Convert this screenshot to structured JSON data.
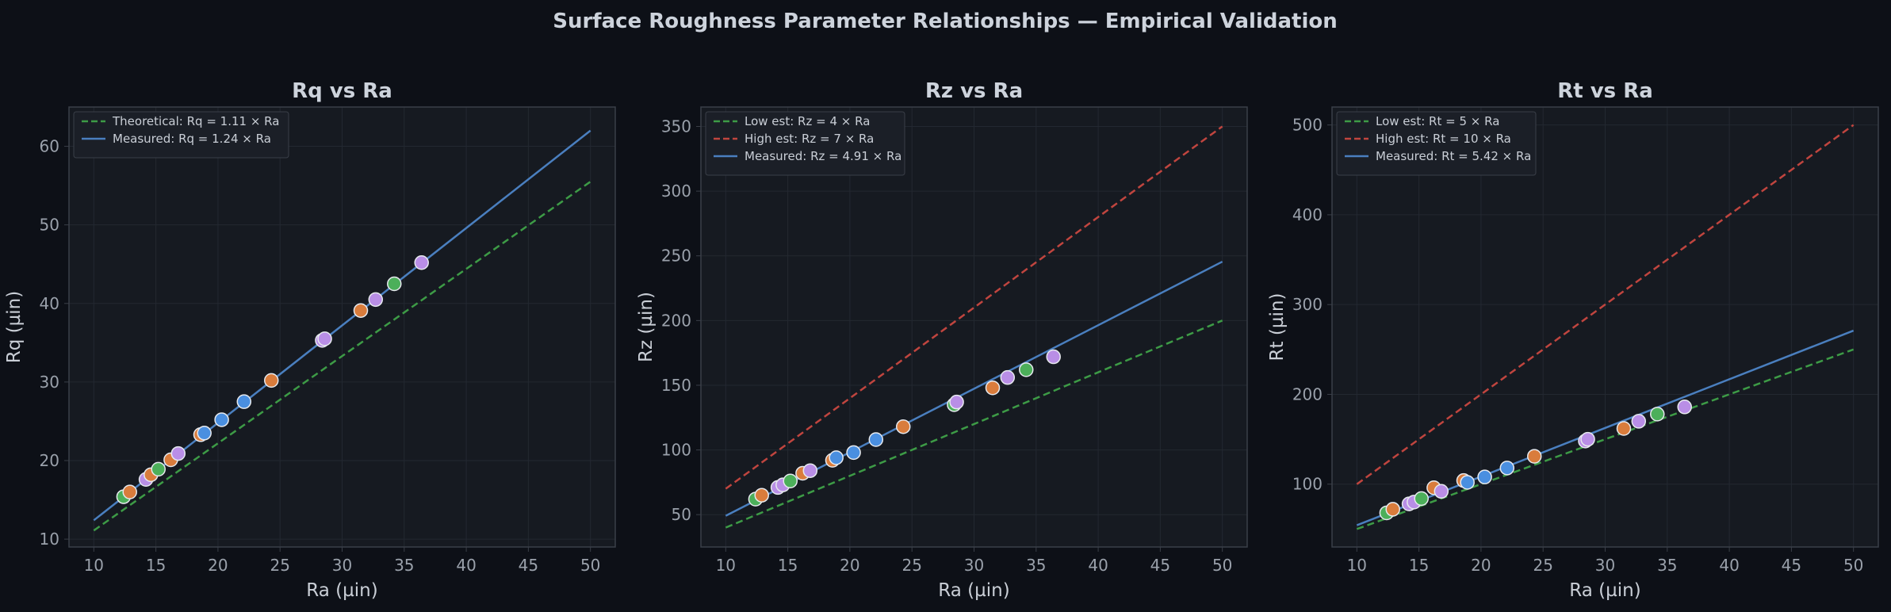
{
  "title": "Surface Roughness Parameter Relationships — Empirical Validation",
  "colors": {
    "background": "#0d1017",
    "panel": "#161a21",
    "grid": "#232831",
    "spine": "#3a3f48",
    "green": "#3d9b46",
    "red": "#c0453f",
    "blue": "#4a7fbf",
    "point_blue": "#4a8fe0",
    "point_orange": "#d97c3c",
    "point_green": "#4caf5a",
    "point_purple": "#b98ee6"
  },
  "chart_data": [
    {
      "type": "scatter",
      "title": "Rq vs Ra",
      "xlabel": "Ra (µin)",
      "ylabel": "Rq (µin)",
      "xlim": [
        8,
        52
      ],
      "ylim": [
        9,
        65
      ],
      "xticks": [
        10,
        15,
        20,
        25,
        30,
        35,
        40,
        45,
        50
      ],
      "yticks": [
        10,
        20,
        30,
        40,
        50,
        60
      ],
      "grid": true,
      "legend_position": "top-left",
      "lines": [
        {
          "name": "Theoretical: Rq = 1.11 × Ra",
          "slope": 1.11,
          "style": "dashed",
          "color": "green"
        },
        {
          "name": "Measured: Rq = 1.24 × Ra",
          "slope": 1.24,
          "style": "solid",
          "color": "blue"
        }
      ],
      "points": [
        {
          "x": 12.4,
          "y": 15.4,
          "color": "point_green"
        },
        {
          "x": 12.9,
          "y": 16.0,
          "color": "point_orange"
        },
        {
          "x": 14.2,
          "y": 17.6,
          "color": "point_purple"
        },
        {
          "x": 14.6,
          "y": 18.2,
          "color": "point_orange"
        },
        {
          "x": 15.2,
          "y": 18.9,
          "color": "point_green"
        },
        {
          "x": 16.2,
          "y": 20.1,
          "color": "point_orange"
        },
        {
          "x": 16.8,
          "y": 20.9,
          "color": "point_purple"
        },
        {
          "x": 18.6,
          "y": 23.3,
          "color": "point_orange"
        },
        {
          "x": 18.9,
          "y": 23.5,
          "color": "point_blue"
        },
        {
          "x": 20.3,
          "y": 25.2,
          "color": "point_blue"
        },
        {
          "x": 22.1,
          "y": 27.5,
          "color": "point_blue"
        },
        {
          "x": 24.3,
          "y": 30.2,
          "color": "point_orange"
        },
        {
          "x": 28.4,
          "y": 35.3,
          "color": "point_purple"
        },
        {
          "x": 28.6,
          "y": 35.5,
          "color": "point_purple"
        },
        {
          "x": 31.5,
          "y": 39.1,
          "color": "point_orange"
        },
        {
          "x": 32.7,
          "y": 40.5,
          "color": "point_purple"
        },
        {
          "x": 34.2,
          "y": 42.5,
          "color": "point_green"
        },
        {
          "x": 36.4,
          "y": 45.2,
          "color": "point_purple"
        }
      ]
    },
    {
      "type": "scatter",
      "title": "Rz vs Ra",
      "xlabel": "Ra (µin)",
      "ylabel": "Rz (µin)",
      "xlim": [
        8,
        52
      ],
      "ylim": [
        25,
        365
      ],
      "xticks": [
        10,
        15,
        20,
        25,
        30,
        35,
        40,
        45,
        50
      ],
      "yticks": [
        50,
        100,
        150,
        200,
        250,
        300,
        350
      ],
      "grid": true,
      "legend_position": "top-left",
      "lines": [
        {
          "name": "Low est: Rz = 4 × Ra",
          "slope": 4,
          "style": "dashed",
          "color": "green"
        },
        {
          "name": "High est: Rz = 7 × Ra",
          "slope": 7,
          "style": "dashed",
          "color": "red"
        },
        {
          "name": "Measured: Rz = 4.91 × Ra",
          "slope": 4.91,
          "style": "solid",
          "color": "blue"
        }
      ],
      "points": [
        {
          "x": 12.4,
          "y": 62,
          "color": "point_green"
        },
        {
          "x": 12.9,
          "y": 65,
          "color": "point_orange"
        },
        {
          "x": 14.2,
          "y": 71,
          "color": "point_purple"
        },
        {
          "x": 14.6,
          "y": 73,
          "color": "point_purple"
        },
        {
          "x": 15.2,
          "y": 76,
          "color": "point_green"
        },
        {
          "x": 16.2,
          "y": 82,
          "color": "point_orange"
        },
        {
          "x": 16.8,
          "y": 84,
          "color": "point_purple"
        },
        {
          "x": 18.6,
          "y": 92,
          "color": "point_orange"
        },
        {
          "x": 18.9,
          "y": 94,
          "color": "point_blue"
        },
        {
          "x": 20.3,
          "y": 98,
          "color": "point_blue"
        },
        {
          "x": 22.1,
          "y": 108,
          "color": "point_blue"
        },
        {
          "x": 24.3,
          "y": 118,
          "color": "point_orange"
        },
        {
          "x": 28.4,
          "y": 135,
          "color": "point_green"
        },
        {
          "x": 28.6,
          "y": 137,
          "color": "point_purple"
        },
        {
          "x": 31.5,
          "y": 148,
          "color": "point_orange"
        },
        {
          "x": 32.7,
          "y": 156,
          "color": "point_purple"
        },
        {
          "x": 34.2,
          "y": 162,
          "color": "point_green"
        },
        {
          "x": 36.4,
          "y": 172,
          "color": "point_purple"
        }
      ]
    },
    {
      "type": "scatter",
      "title": "Rt vs Ra",
      "xlabel": "Ra (µin)",
      "ylabel": "Rt (µin)",
      "xlim": [
        8,
        52
      ],
      "ylim": [
        30,
        520
      ],
      "xticks": [
        10,
        15,
        20,
        25,
        30,
        35,
        40,
        45,
        50
      ],
      "yticks": [
        100,
        200,
        300,
        400,
        500
      ],
      "grid": true,
      "legend_position": "top-left",
      "lines": [
        {
          "name": "Low est: Rt = 5 × Ra",
          "slope": 5,
          "style": "dashed",
          "color": "green"
        },
        {
          "name": "High est: Rt = 10 × Ra",
          "slope": 10,
          "style": "dashed",
          "color": "red"
        },
        {
          "name": "Measured: Rt = 5.42 × Ra",
          "slope": 5.42,
          "style": "solid",
          "color": "blue"
        }
      ],
      "points": [
        {
          "x": 12.4,
          "y": 68,
          "color": "point_green"
        },
        {
          "x": 12.9,
          "y": 72,
          "color": "point_orange"
        },
        {
          "x": 14.2,
          "y": 78,
          "color": "point_purple"
        },
        {
          "x": 14.6,
          "y": 80,
          "color": "point_purple"
        },
        {
          "x": 15.2,
          "y": 84,
          "color": "point_green"
        },
        {
          "x": 16.2,
          "y": 96,
          "color": "point_orange"
        },
        {
          "x": 16.8,
          "y": 92,
          "color": "point_purple"
        },
        {
          "x": 18.6,
          "y": 104,
          "color": "point_orange"
        },
        {
          "x": 18.9,
          "y": 102,
          "color": "point_blue"
        },
        {
          "x": 20.3,
          "y": 108,
          "color": "point_blue"
        },
        {
          "x": 22.1,
          "y": 118,
          "color": "point_blue"
        },
        {
          "x": 24.3,
          "y": 131,
          "color": "point_orange"
        },
        {
          "x": 28.4,
          "y": 148,
          "color": "point_purple"
        },
        {
          "x": 28.6,
          "y": 150,
          "color": "point_purple"
        },
        {
          "x": 31.5,
          "y": 162,
          "color": "point_orange"
        },
        {
          "x": 32.7,
          "y": 170,
          "color": "point_purple"
        },
        {
          "x": 34.2,
          "y": 178,
          "color": "point_green"
        },
        {
          "x": 36.4,
          "y": 186,
          "color": "point_purple"
        }
      ]
    }
  ]
}
